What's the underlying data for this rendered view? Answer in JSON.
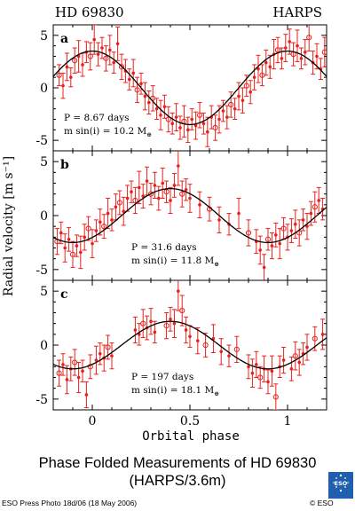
{
  "header": {
    "star": "HD 69830",
    "instrument": "HARPS"
  },
  "caption": {
    "line1": "Phase Folded Measurements of HD 69830",
    "line2": "(HARPS/3.6m)"
  },
  "footer": {
    "credit": "ESO Press Photo 18d/06 (18 May 2006)",
    "copyright": "© ESO"
  },
  "logo_text": "ESO",
  "colors": {
    "data": "#e8201c",
    "model": "#000000"
  },
  "chart_data": [
    {
      "type": "scatter",
      "panel": "a",
      "period_label": "P = 8.67 days",
      "mass_label": "m sin(i) = 10.2 M",
      "mass_subscript": "⊕",
      "xlabel": "Orbital phase",
      "ylabel": "Radial velocity [m s⁻¹]",
      "xlim": [
        -0.2,
        1.2
      ],
      "ylim": [
        -6,
        6
      ],
      "xticks": [
        0,
        0.5,
        1
      ],
      "yticks": [
        -5,
        0,
        5
      ],
      "model": {
        "amplitude": 3.5,
        "peak_phase": 0.0
      },
      "points": [
        {
          "x": -0.17,
          "y": 1.2,
          "e": 1.0
        },
        {
          "x": -0.15,
          "y": 0.2,
          "e": 1.2
        },
        {
          "x": -0.13,
          "y": 2.0,
          "e": 1.3
        },
        {
          "x": -0.11,
          "y": 1.0,
          "e": 0.9
        },
        {
          "x": -0.09,
          "y": 2.6,
          "e": 1.2
        },
        {
          "x": -0.07,
          "y": 3.0,
          "e": 1.5
        },
        {
          "x": -0.05,
          "y": 2.2,
          "e": 1.1
        },
        {
          "x": -0.03,
          "y": 3.4,
          "e": 1.0
        },
        {
          "x": -0.01,
          "y": 3.0,
          "e": 1.3
        },
        {
          "x": 0.01,
          "y": 4.6,
          "e": 1.4
        },
        {
          "x": 0.03,
          "y": 3.2,
          "e": 1.1
        },
        {
          "x": 0.05,
          "y": 3.8,
          "e": 1.0
        },
        {
          "x": 0.07,
          "y": 2.8,
          "e": 1.2
        },
        {
          "x": 0.09,
          "y": 3.6,
          "e": 1.4
        },
        {
          "x": 0.11,
          "y": 2.4,
          "e": 1.0
        },
        {
          "x": 0.13,
          "y": 4.2,
          "e": 1.6
        },
        {
          "x": 0.15,
          "y": 2.0,
          "e": 1.2
        },
        {
          "x": 0.17,
          "y": 1.6,
          "e": 1.1
        },
        {
          "x": 0.19,
          "y": 0.8,
          "e": 1.0
        },
        {
          "x": 0.21,
          "y": 1.4,
          "e": 1.3
        },
        {
          "x": 0.23,
          "y": -0.2,
          "e": 1.2
        },
        {
          "x": 0.25,
          "y": 0.4,
          "e": 1.0
        },
        {
          "x": 0.27,
          "y": -0.8,
          "e": 1.3
        },
        {
          "x": 0.29,
          "y": -1.4,
          "e": 1.1
        },
        {
          "x": 0.31,
          "y": -1.0,
          "e": 1.2
        },
        {
          "x": 0.33,
          "y": -2.0,
          "e": 1.0
        },
        {
          "x": 0.35,
          "y": -2.6,
          "e": 1.4
        },
        {
          "x": 0.37,
          "y": -1.8,
          "e": 1.1
        },
        {
          "x": 0.39,
          "y": -3.0,
          "e": 1.2
        },
        {
          "x": 0.41,
          "y": -3.4,
          "e": 1.0
        },
        {
          "x": 0.43,
          "y": -2.8,
          "e": 1.3
        },
        {
          "x": 0.45,
          "y": -3.8,
          "e": 1.1
        },
        {
          "x": 0.47,
          "y": -3.2,
          "e": 1.5
        },
        {
          "x": 0.49,
          "y": -4.0,
          "e": 1.2
        },
        {
          "x": 0.51,
          "y": -3.0,
          "e": 1.0
        },
        {
          "x": 0.53,
          "y": -3.6,
          "e": 1.3
        },
        {
          "x": 0.55,
          "y": -2.6,
          "e": 1.2
        },
        {
          "x": 0.57,
          "y": -3.4,
          "e": 1.0
        },
        {
          "x": 0.59,
          "y": -4.2,
          "e": 1.4
        },
        {
          "x": 0.61,
          "y": -2.8,
          "e": 1.1
        },
        {
          "x": 0.63,
          "y": -3.8,
          "e": 1.2
        },
        {
          "x": 0.65,
          "y": -3.0,
          "e": 1.3
        },
        {
          "x": 0.67,
          "y": -2.2,
          "e": 1.0
        },
        {
          "x": 0.69,
          "y": -2.8,
          "e": 1.1
        },
        {
          "x": 0.71,
          "y": -1.6,
          "e": 1.2
        },
        {
          "x": 0.73,
          "y": -2.0,
          "e": 1.0
        },
        {
          "x": 0.75,
          "y": -0.8,
          "e": 1.3
        },
        {
          "x": 0.77,
          "y": -1.2,
          "e": 1.2
        },
        {
          "x": 0.79,
          "y": 0.2,
          "e": 1.0
        },
        {
          "x": 0.81,
          "y": -0.4,
          "e": 1.1
        },
        {
          "x": 0.83,
          "y": 1.0,
          "e": 1.2
        },
        {
          "x": 0.85,
          "y": 1.8,
          "e": 1.3
        },
        {
          "x": 0.87,
          "y": 1.2,
          "e": 1.0
        },
        {
          "x": 0.89,
          "y": 2.4,
          "e": 1.2
        },
        {
          "x": 0.91,
          "y": 2.0,
          "e": 1.1
        },
        {
          "x": 0.93,
          "y": 3.2,
          "e": 1.4
        },
        {
          "x": 0.95,
          "y": 3.6,
          "e": 1.2
        },
        {
          "x": 0.97,
          "y": 2.8,
          "e": 1.0
        },
        {
          "x": 0.99,
          "y": 3.8,
          "e": 1.3
        },
        {
          "x": 1.01,
          "y": 4.4,
          "e": 1.2
        },
        {
          "x": 1.03,
          "y": 3.2,
          "e": 1.1
        },
        {
          "x": 1.05,
          "y": 4.0,
          "e": 1.5
        },
        {
          "x": 1.07,
          "y": 2.8,
          "e": 1.0
        },
        {
          "x": 1.09,
          "y": 3.4,
          "e": 1.2
        },
        {
          "x": 1.11,
          "y": 4.8,
          "e": 1.3
        },
        {
          "x": 1.13,
          "y": 2.4,
          "e": 1.1
        },
        {
          "x": 1.15,
          "y": 3.0,
          "e": 1.2
        },
        {
          "x": 1.17,
          "y": 1.8,
          "e": 1.0
        },
        {
          "x": 1.19,
          "y": 3.4,
          "e": 1.4
        }
      ]
    },
    {
      "type": "scatter",
      "panel": "b",
      "period_label": "P = 31.6 days",
      "mass_label": "m sin(i) = 11.8 M",
      "mass_subscript": "⊕",
      "xlabel": "Orbital phase",
      "ylabel": "Radial velocity [m s⁻¹]",
      "xlim": [
        -0.2,
        1.2
      ],
      "ylim": [
        -6,
        6
      ],
      "xticks": [
        0,
        0.5,
        1
      ],
      "yticks": [
        -5,
        0,
        5
      ],
      "model": {
        "amplitude": 2.5,
        "peak_phase": 0.4
      },
      "points": [
        {
          "x": -0.18,
          "y": -2.4,
          "e": 1.2
        },
        {
          "x": -0.16,
          "y": -1.6,
          "e": 1.0
        },
        {
          "x": -0.14,
          "y": -3.0,
          "e": 1.3
        },
        {
          "x": -0.12,
          "y": -2.2,
          "e": 1.1
        },
        {
          "x": -0.1,
          "y": -3.6,
          "e": 1.2
        },
        {
          "x": -0.08,
          "y": -2.8,
          "e": 1.0
        },
        {
          "x": -0.06,
          "y": -3.4,
          "e": 1.5
        },
        {
          "x": -0.04,
          "y": -2.0,
          "e": 1.2
        },
        {
          "x": -0.02,
          "y": -1.2,
          "e": 1.1
        },
        {
          "x": 0.0,
          "y": -2.6,
          "e": 1.3
        },
        {
          "x": 0.02,
          "y": -1.4,
          "e": 1.0
        },
        {
          "x": 0.04,
          "y": -0.6,
          "e": 1.2
        },
        {
          "x": 0.06,
          "y": -1.0,
          "e": 1.1
        },
        {
          "x": 0.08,
          "y": 0.2,
          "e": 1.4
        },
        {
          "x": 0.1,
          "y": -0.4,
          "e": 1.0
        },
        {
          "x": 0.12,
          "y": 0.8,
          "e": 1.2
        },
        {
          "x": 0.14,
          "y": 1.2,
          "e": 1.1
        },
        {
          "x": 0.16,
          "y": 0.4,
          "e": 1.3
        },
        {
          "x": 0.18,
          "y": 1.6,
          "e": 1.2
        },
        {
          "x": 0.2,
          "y": 2.2,
          "e": 1.0
        },
        {
          "x": 0.22,
          "y": 1.4,
          "e": 1.2
        },
        {
          "x": 0.24,
          "y": 2.6,
          "e": 1.5
        },
        {
          "x": 0.26,
          "y": 1.8,
          "e": 1.1
        },
        {
          "x": 0.28,
          "y": 3.2,
          "e": 1.3
        },
        {
          "x": 0.3,
          "y": 2.0,
          "e": 1.0
        },
        {
          "x": 0.32,
          "y": 2.8,
          "e": 1.2
        },
        {
          "x": 0.34,
          "y": 1.6,
          "e": 1.1
        },
        {
          "x": 0.36,
          "y": 3.0,
          "e": 1.4
        },
        {
          "x": 0.38,
          "y": 2.2,
          "e": 1.0
        },
        {
          "x": 0.4,
          "y": 1.4,
          "e": 1.2
        },
        {
          "x": 0.42,
          "y": 2.8,
          "e": 1.1
        },
        {
          "x": 0.44,
          "y": 4.6,
          "e": 1.8
        },
        {
          "x": 0.46,
          "y": 2.0,
          "e": 1.2
        },
        {
          "x": 0.48,
          "y": 2.4,
          "e": 1.0
        },
        {
          "x": 0.5,
          "y": 1.6,
          "e": 1.3
        },
        {
          "x": 0.55,
          "y": 1.0,
          "e": 1.2
        },
        {
          "x": 0.6,
          "y": 0.6,
          "e": 1.1
        },
        {
          "x": 0.65,
          "y": -0.4,
          "e": 1.2
        },
        {
          "x": 0.7,
          "y": -0.8,
          "e": 1.0
        },
        {
          "x": 0.75,
          "y": 0.2,
          "e": 1.4
        },
        {
          "x": 0.8,
          "y": -1.6,
          "e": 1.2
        },
        {
          "x": 0.84,
          "y": -2.4,
          "e": 1.1
        },
        {
          "x": 0.86,
          "y": -3.2,
          "e": 1.3
        },
        {
          "x": 0.88,
          "y": -4.8,
          "e": 1.2
        },
        {
          "x": 0.9,
          "y": -2.2,
          "e": 1.0
        },
        {
          "x": 0.92,
          "y": -2.8,
          "e": 1.2
        },
        {
          "x": 0.94,
          "y": -1.8,
          "e": 1.1
        },
        {
          "x": 0.96,
          "y": -2.6,
          "e": 1.4
        },
        {
          "x": 0.98,
          "y": -1.2,
          "e": 1.0
        },
        {
          "x": 1.0,
          "y": -2.0,
          "e": 1.2
        },
        {
          "x": 1.02,
          "y": -1.4,
          "e": 1.1
        },
        {
          "x": 1.04,
          "y": -0.8,
          "e": 1.3
        },
        {
          "x": 1.06,
          "y": -1.6,
          "e": 1.2
        },
        {
          "x": 1.08,
          "y": -0.4,
          "e": 1.0
        },
        {
          "x": 1.1,
          "y": -1.0,
          "e": 1.2
        },
        {
          "x": 1.12,
          "y": 0.2,
          "e": 1.1
        },
        {
          "x": 1.14,
          "y": 0.8,
          "e": 1.4
        },
        {
          "x": 1.16,
          "y": 1.4,
          "e": 1.2
        },
        {
          "x": 1.18,
          "y": 0.6,
          "e": 1.0
        }
      ]
    },
    {
      "type": "scatter",
      "panel": "c",
      "period_label": "P = 197 days",
      "mass_label": "m sin(i) = 18.1 M",
      "mass_subscript": "⊕",
      "xlabel": "Orbital phase",
      "ylabel": "Radial velocity [m s⁻¹]",
      "xlim": [
        -0.2,
        1.2
      ],
      "ylim": [
        -6,
        6
      ],
      "xticks": [
        0,
        0.5,
        1
      ],
      "yticks": [
        -5,
        0,
        5
      ],
      "model": {
        "amplitude": 2.2,
        "peak_phase": 0.4
      },
      "points": [
        {
          "x": -0.17,
          "y": -2.6,
          "e": 1.2
        },
        {
          "x": -0.15,
          "y": -1.8,
          "e": 1.0
        },
        {
          "x": -0.13,
          "y": -3.2,
          "e": 1.3
        },
        {
          "x": -0.11,
          "y": -2.2,
          "e": 1.1
        },
        {
          "x": -0.09,
          "y": -1.6,
          "e": 1.2
        },
        {
          "x": -0.07,
          "y": -3.0,
          "e": 1.4
        },
        {
          "x": -0.05,
          "y": -2.4,
          "e": 1.0
        },
        {
          "x": -0.03,
          "y": -4.6,
          "e": 1.2
        },
        {
          "x": -0.01,
          "y": -2.0,
          "e": 1.1
        },
        {
          "x": 0.02,
          "y": -1.4,
          "e": 1.3
        },
        {
          "x": 0.04,
          "y": -0.8,
          "e": 1.0
        },
        {
          "x": 0.06,
          "y": -1.2,
          "e": 1.2
        },
        {
          "x": 0.08,
          "y": -0.2,
          "e": 1.1
        },
        {
          "x": 0.1,
          "y": -1.0,
          "e": 1.2
        },
        {
          "x": 0.22,
          "y": 1.4,
          "e": 1.2
        },
        {
          "x": 0.24,
          "y": 1.0,
          "e": 1.0
        },
        {
          "x": 0.26,
          "y": 2.0,
          "e": 1.3
        },
        {
          "x": 0.28,
          "y": 1.6,
          "e": 1.1
        },
        {
          "x": 0.3,
          "y": 2.2,
          "e": 1.2
        },
        {
          "x": 0.32,
          "y": 1.2,
          "e": 1.0
        },
        {
          "x": 0.38,
          "y": 1.8,
          "e": 1.2
        },
        {
          "x": 0.4,
          "y": 2.4,
          "e": 1.1
        },
        {
          "x": 0.42,
          "y": 2.0,
          "e": 1.3
        },
        {
          "x": 0.44,
          "y": 5.0,
          "e": 1.8
        },
        {
          "x": 0.46,
          "y": 3.2,
          "e": 1.4
        },
        {
          "x": 0.48,
          "y": 1.4,
          "e": 1.2
        },
        {
          "x": 0.5,
          "y": 0.8,
          "e": 1.0
        },
        {
          "x": 0.54,
          "y": 0.4,
          "e": 1.2
        },
        {
          "x": 0.58,
          "y": 0.0,
          "e": 1.1
        },
        {
          "x": 0.62,
          "y": 0.6,
          "e": 1.3
        },
        {
          "x": 0.66,
          "y": -0.6,
          "e": 1.2
        },
        {
          "x": 0.7,
          "y": -1.0,
          "e": 1.0
        },
        {
          "x": 0.74,
          "y": -0.4,
          "e": 1.2
        },
        {
          "x": 0.8,
          "y": -2.0,
          "e": 1.1
        },
        {
          "x": 0.82,
          "y": -2.6,
          "e": 1.3
        },
        {
          "x": 0.84,
          "y": -1.8,
          "e": 1.2
        },
        {
          "x": 0.86,
          "y": -3.0,
          "e": 1.0
        },
        {
          "x": 0.88,
          "y": -2.2,
          "e": 1.2
        },
        {
          "x": 0.9,
          "y": -3.4,
          "e": 1.1
        },
        {
          "x": 0.92,
          "y": -2.4,
          "e": 1.4
        },
        {
          "x": 0.94,
          "y": -4.8,
          "e": 1.2
        },
        {
          "x": 0.96,
          "y": -2.0,
          "e": 1.0
        },
        {
          "x": 0.98,
          "y": -1.4,
          "e": 1.2
        },
        {
          "x": 1.02,
          "y": -2.2,
          "e": 1.1
        },
        {
          "x": 1.04,
          "y": -1.0,
          "e": 1.3
        },
        {
          "x": 1.06,
          "y": -1.6,
          "e": 1.2
        },
        {
          "x": 1.08,
          "y": -0.8,
          "e": 1.0
        },
        {
          "x": 1.1,
          "y": -0.2,
          "e": 1.2
        },
        {
          "x": 1.14,
          "y": 0.6,
          "e": 1.1
        },
        {
          "x": 1.18,
          "y": 1.0,
          "e": 1.4
        }
      ]
    }
  ]
}
